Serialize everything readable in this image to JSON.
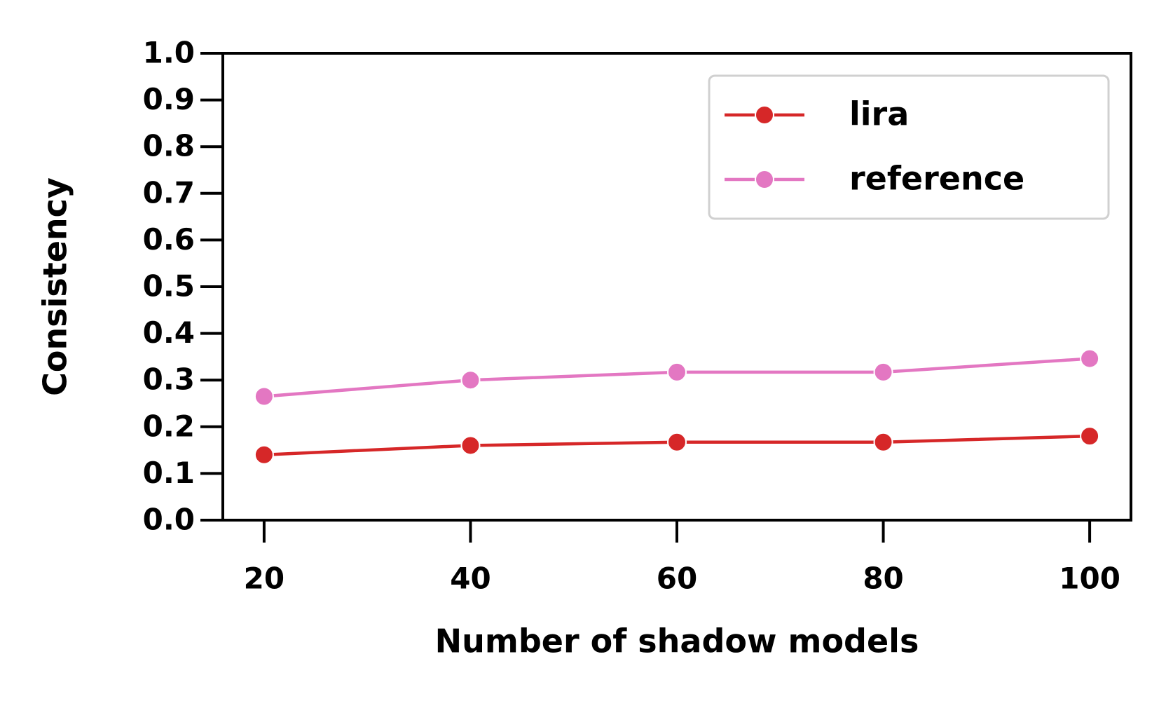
{
  "chart_data": {
    "type": "line",
    "x_label": "Number of shadow models",
    "y_label": "Consistency",
    "x": [
      20,
      40,
      60,
      80,
      100
    ],
    "series": [
      {
        "name": "lira",
        "color": "#d62728",
        "values": [
          0.14,
          0.16,
          0.167,
          0.167,
          0.18
        ]
      },
      {
        "name": "reference",
        "color": "#e377c2",
        "values": [
          0.265,
          0.3,
          0.317,
          0.317,
          0.346
        ]
      }
    ],
    "xlim": [
      16,
      104
    ],
    "xticks": [
      20,
      40,
      60,
      80,
      100
    ],
    "ylim": [
      0,
      1
    ],
    "yticks": [
      {
        "value": 0,
        "label": "0.0"
      },
      0.1,
      0.2,
      0.3,
      0.4,
      0.5,
      0.6,
      0.7,
      0.8,
      0.9,
      {
        "value": 1,
        "label": "1.0"
      }
    ],
    "legend": "upper right",
    "grid": false
  }
}
